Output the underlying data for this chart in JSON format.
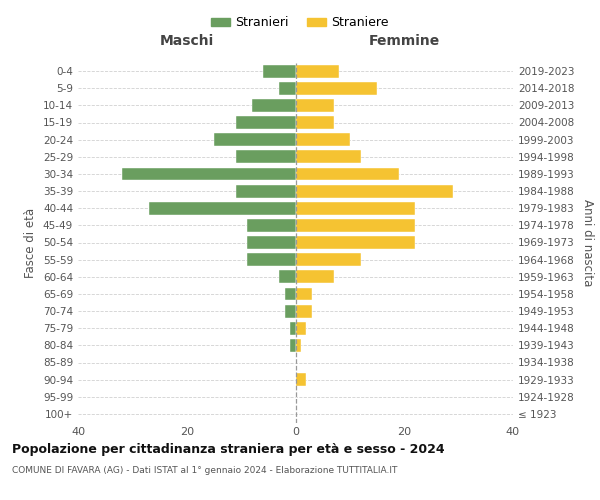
{
  "age_groups": [
    "100+",
    "95-99",
    "90-94",
    "85-89",
    "80-84",
    "75-79",
    "70-74",
    "65-69",
    "60-64",
    "55-59",
    "50-54",
    "45-49",
    "40-44",
    "35-39",
    "30-34",
    "25-29",
    "20-24",
    "15-19",
    "10-14",
    "5-9",
    "0-4"
  ],
  "birth_years": [
    "≤ 1923",
    "1924-1928",
    "1929-1933",
    "1934-1938",
    "1939-1943",
    "1944-1948",
    "1949-1953",
    "1954-1958",
    "1959-1963",
    "1964-1968",
    "1969-1973",
    "1974-1978",
    "1979-1983",
    "1984-1988",
    "1989-1993",
    "1994-1998",
    "1999-2003",
    "2004-2008",
    "2009-2013",
    "2014-2018",
    "2019-2023"
  ],
  "maschi": [
    0,
    0,
    0,
    0,
    1,
    1,
    2,
    2,
    3,
    9,
    9,
    9,
    27,
    11,
    32,
    11,
    15,
    11,
    8,
    3,
    6
  ],
  "femmine": [
    0,
    0,
    2,
    0,
    1,
    2,
    3,
    3,
    7,
    12,
    22,
    22,
    22,
    29,
    19,
    12,
    10,
    7,
    7,
    15,
    8
  ],
  "color_maschi": "#6a9e5f",
  "color_femmine": "#f5c332",
  "xlim_min": -40,
  "xlim_max": 40,
  "xticks": [
    -40,
    -20,
    0,
    20,
    40
  ],
  "xticklabels": [
    "40",
    "20",
    "0",
    "20",
    "40"
  ],
  "title": "Popolazione per cittadinanza straniera per età e sesso - 2024",
  "subtitle": "COMUNE DI FAVARA (AG) - Dati ISTAT al 1° gennaio 2024 - Elaborazione TUTTITALIA.IT",
  "ylabel_left": "Fasce di età",
  "ylabel_right": "Anni di nascita",
  "label_maschi": "Stranieri",
  "label_femmine": "Straniere",
  "col_header_left": "Maschi",
  "col_header_right": "Femmine",
  "background_color": "#ffffff",
  "grid_color": "#cccccc"
}
